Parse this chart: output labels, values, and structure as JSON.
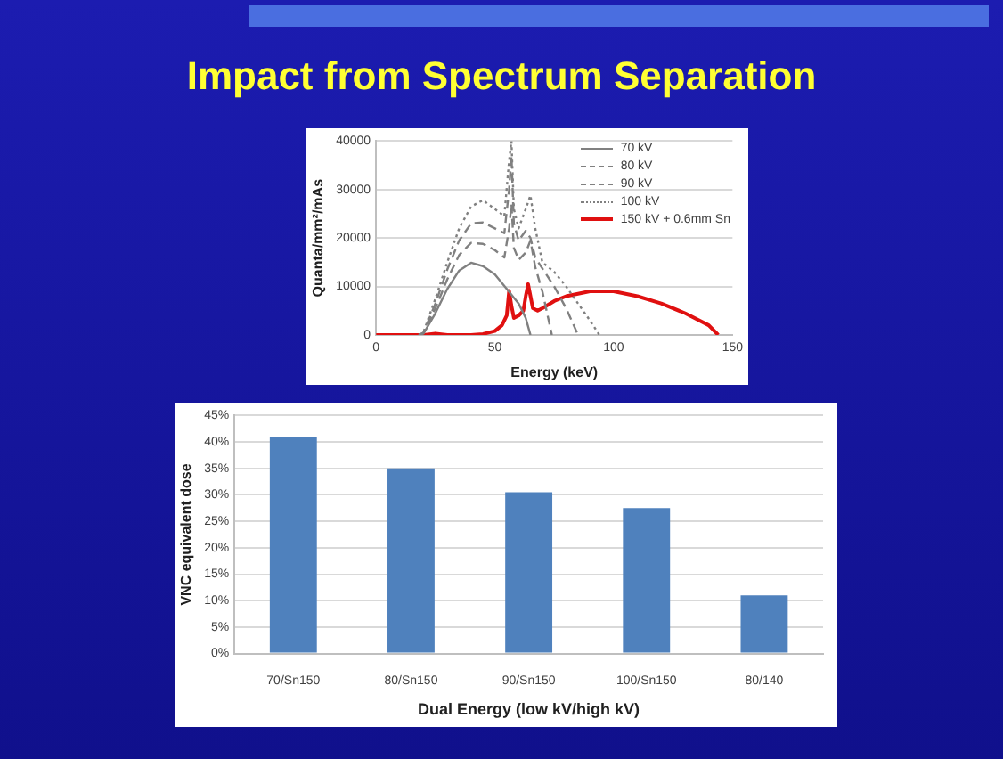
{
  "chart_data": [
    {
      "type": "line",
      "title": "Impact from Spectrum Separation",
      "xlabel": "Energy (keV)",
      "ylabel": "Quanta/mm²/mAs",
      "xlim": [
        0,
        150
      ],
      "xticks": [
        0,
        50,
        100,
        150
      ],
      "ylim": [
        0,
        40000
      ],
      "yticks": [
        0,
        10000,
        20000,
        30000,
        40000
      ],
      "grid": "y",
      "legend": "top right",
      "marker": "none",
      "series": [
        {
          "name": "70 kV",
          "color": "#808080",
          "line_style": "solid",
          "x": [
            18,
            20,
            25,
            30,
            35,
            40,
            45,
            50,
            55,
            60,
            63,
            65
          ],
          "values": [
            0,
            300,
            4500,
            9500,
            13300,
            14900,
            14200,
            12500,
            9500,
            6500,
            3500,
            0
          ]
        },
        {
          "name": "80 kV",
          "color": "#808080",
          "line_style": "dashed",
          "x": [
            18,
            20,
            25,
            30,
            35,
            40,
            45,
            50,
            54,
            56,
            57,
            58,
            60,
            63,
            65,
            67,
            70,
            74
          ],
          "values": [
            0,
            400,
            5500,
            11500,
            16500,
            19000,
            18800,
            17500,
            16000,
            22000,
            27000,
            18000,
            15500,
            17000,
            19500,
            14000,
            9000,
            0
          ]
        },
        {
          "name": "90 kV",
          "color": "#808080",
          "line_style": "dashed",
          "x": [
            18,
            20,
            25,
            30,
            35,
            40,
            45,
            50,
            54,
            56,
            57,
            58,
            60,
            63,
            65,
            67,
            70,
            75,
            80,
            85
          ],
          "values": [
            0,
            500,
            6500,
            13500,
            19500,
            23000,
            23200,
            22000,
            21000,
            30000,
            37000,
            23000,
            19500,
            21500,
            20000,
            16000,
            13700,
            10000,
            5500,
            0
          ]
        },
        {
          "name": "100 kV",
          "color": "#808080",
          "line_style": "dotted",
          "x": [
            18,
            20,
            25,
            30,
            35,
            40,
            45,
            50,
            54,
            56,
            57,
            58,
            60,
            63,
            65,
            67,
            70,
            75,
            80,
            85,
            90,
            94
          ],
          "values": [
            0,
            600,
            7500,
            15000,
            22000,
            26500,
            27800,
            26000,
            24500,
            36000,
            40000,
            26000,
            22000,
            26000,
            28800,
            22000,
            15000,
            13000,
            10000,
            6500,
            3000,
            0
          ]
        },
        {
          "name": "150 kV + 0.6mm Sn",
          "color": "#e01010",
          "line_style": "solid",
          "x": [
            0,
            20,
            25,
            30,
            40,
            45,
            50,
            53,
            55,
            56,
            57,
            58,
            60,
            62,
            63,
            64,
            66,
            68,
            70,
            75,
            80,
            90,
            100,
            110,
            120,
            130,
            140,
            144
          ],
          "values": [
            0,
            0,
            300,
            0,
            0,
            200,
            800,
            2000,
            4000,
            9100,
            6000,
            3500,
            4000,
            5000,
            8000,
            10500,
            5500,
            5000,
            5500,
            7000,
            8000,
            9000,
            9000,
            8000,
            6500,
            4500,
            2000,
            0
          ]
        }
      ]
    },
    {
      "type": "bar",
      "xlabel": "Dual Energy (low kV/high kV)",
      "ylabel": "VNC equivalent dose",
      "categories": [
        "70/Sn150",
        "80/Sn150",
        "90/Sn150",
        "100/Sn150",
        "80/140"
      ],
      "values": [
        41,
        35,
        30.5,
        27.5,
        11
      ],
      "color": "#4f81bd",
      "ylim": [
        0,
        45
      ],
      "yticks": [
        {
          "value": 0,
          "label": "0%"
        },
        {
          "value": 5,
          "label": "5%"
        },
        {
          "value": 10,
          "label": "10%"
        },
        {
          "value": 15,
          "label": "15%"
        },
        {
          "value": 20,
          "label": "20%"
        },
        {
          "value": 25,
          "label": "25%"
        },
        {
          "value": 30,
          "label": "30%"
        },
        {
          "value": 35,
          "label": "35%"
        },
        {
          "value": 40,
          "label": "40%"
        },
        {
          "value": 45,
          "label": "45%"
        }
      ],
      "grid": "y",
      "legend": false
    }
  ]
}
